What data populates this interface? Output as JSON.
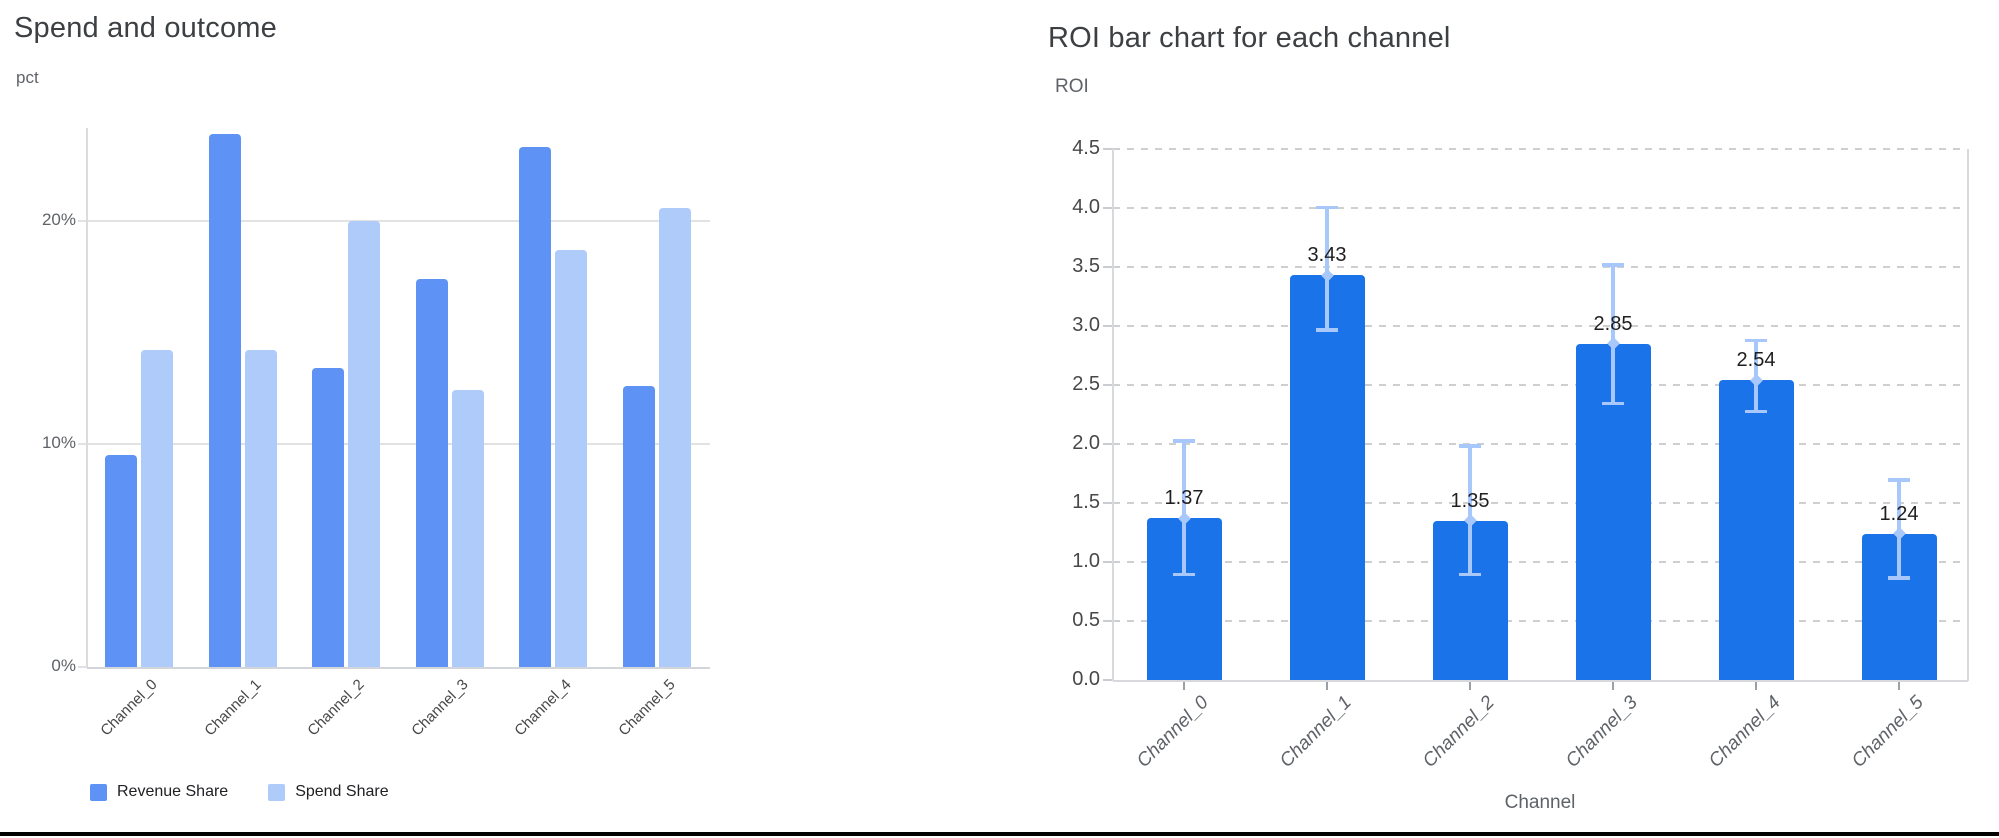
{
  "page": {
    "background": "#ffffff",
    "bottom_rule_color": "#000000"
  },
  "chart_data": [
    {
      "type": "bar",
      "title": "Spend and outcome",
      "ylabel": "pct",
      "categories": [
        "Channel_0",
        "Channel_1",
        "Channel_2",
        "Channel_3",
        "Channel_4",
        "Channel_5"
      ],
      "series": [
        {
          "name": "Revenue Share",
          "color": "#5e92f4",
          "values": [
            9.5,
            23.9,
            13.4,
            17.4,
            23.3,
            12.6
          ]
        },
        {
          "name": "Spend Share",
          "color": "#aecbfa",
          "values": [
            14.2,
            14.2,
            20.0,
            12.4,
            18.7,
            20.6
          ]
        }
      ],
      "yticks": [
        {
          "label": "0%",
          "value": 0
        },
        {
          "label": "10%",
          "value": 10
        },
        {
          "label": "20%",
          "value": 20
        }
      ],
      "ylim": [
        0,
        24.2
      ],
      "grid": "solid-horizontal",
      "legend_position": "bottom-left",
      "grid_color": "#e2e2e2",
      "axis_color": "#d2d5d9",
      "tick_label_color": "#5f6368",
      "x_tick_label_color": "#474747",
      "title_color": "#3c4043"
    },
    {
      "type": "bar",
      "title": "ROI bar chart for each channel",
      "ylabel": "ROI",
      "xlabel": "Channel",
      "categories": [
        "Channel_0",
        "Channel_1",
        "Channel_2",
        "Channel_3",
        "Channel_4",
        "Channel_5"
      ],
      "values": [
        1.37,
        3.43,
        1.35,
        2.85,
        2.54,
        1.24
      ],
      "error_low": [
        0.88,
        2.95,
        0.88,
        2.33,
        2.26,
        0.85
      ],
      "error_high": [
        2.04,
        4.02,
        2.0,
        3.53,
        2.89,
        1.71
      ],
      "yticks": [
        0,
        0.5,
        1,
        1.5,
        2,
        2.5,
        3,
        3.5,
        4,
        4.5
      ],
      "ylim": [
        0,
        4.5
      ],
      "grid": "dashed-horizontal",
      "bar_color": "#1a73e8",
      "error_bar_color": "#a8c7fa",
      "value_label_color": "#1f1f1f",
      "grid_color": "#cfcfcf",
      "axis_color": "#d7d9dc",
      "tick_label_color": "#46484a",
      "x_tick_label_color": "#5f6368",
      "title_color": "#3c4043"
    }
  ]
}
